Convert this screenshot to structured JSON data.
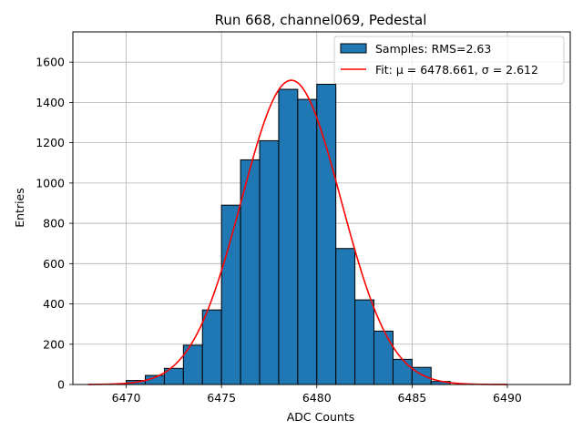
{
  "chart_data": {
    "type": "bar",
    "title": "Run 668, channel069, Pedestal",
    "xlabel": "ADC Counts",
    "ylabel": "Entries",
    "xlim": [
      6467.2,
      6493.3
    ],
    "ylim": [
      0,
      1750
    ],
    "xticks": [
      6470,
      6475,
      6480,
      6485,
      6490
    ],
    "yticks": [
      0,
      200,
      400,
      600,
      800,
      1000,
      1200,
      1400,
      1600
    ],
    "grid": true,
    "legend_position": "top-right",
    "bar_color": "#1f77b4",
    "fit_color": "#ff0000",
    "series": [
      {
        "name": "Samples: RMS=2.63",
        "bin_width": 1,
        "bins_left": [
          6470,
          6471,
          6472,
          6473,
          6474,
          6475,
          6476,
          6477,
          6478,
          6479,
          6480,
          6481,
          6482,
          6483,
          6484,
          6485,
          6486
        ],
        "values": [
          20,
          45,
          80,
          195,
          370,
          890,
          1115,
          1210,
          1465,
          1415,
          1490,
          675,
          420,
          265,
          125,
          85,
          15
        ]
      },
      {
        "name": "Fit: μ = 6478.661, σ = 2.612",
        "curve": "gaussian",
        "mu": 6478.661,
        "sigma": 2.612,
        "amplitude": 1510,
        "x_range": [
          6468,
          6490
        ]
      }
    ]
  }
}
